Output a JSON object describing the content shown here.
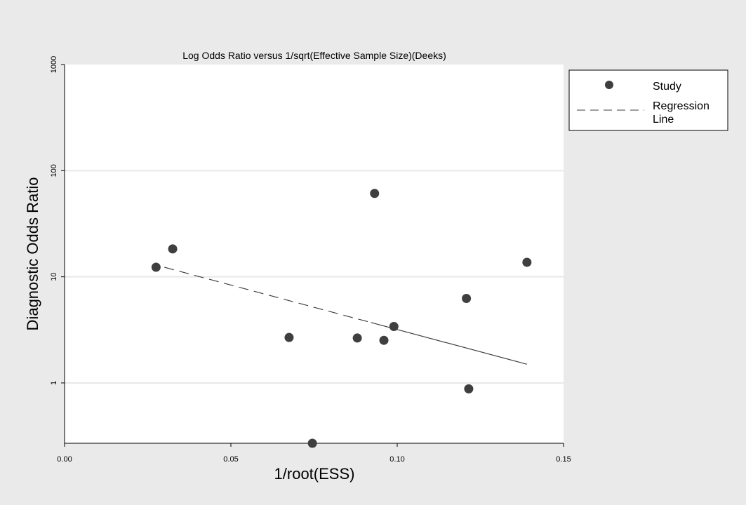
{
  "chart_data": {
    "type": "scatter",
    "title": "Log Odds Ratio versus 1/sqrt(Effective Sample Size)(Deeks)",
    "xlabel": "1/root(ESS)",
    "ylabel": "Diagnostic Odds Ratio",
    "y_scale": "log",
    "xlim": [
      0.0,
      0.15
    ],
    "ylim": [
      0.27,
      1000
    ],
    "x_ticks": [
      0.0,
      0.05,
      0.1,
      0.15
    ],
    "x_tick_labels": [
      "0.00",
      "0.05",
      "0.10",
      "0.15"
    ],
    "y_ticks": [
      1,
      10,
      100,
      1000
    ],
    "y_tick_labels": [
      "1",
      "10",
      "100",
      "1000"
    ],
    "grid": "horizontal",
    "legend_position": "right",
    "series": [
      {
        "name": "Study",
        "marker": "filled-circle",
        "color": "#3f3f3f",
        "points": [
          {
            "x": 0.0275,
            "y": 12.3
          },
          {
            "x": 0.0325,
            "y": 18.3
          },
          {
            "x": 0.0675,
            "y": 2.68
          },
          {
            "x": 0.0745,
            "y": 0.27
          },
          {
            "x": 0.088,
            "y": 2.65
          },
          {
            "x": 0.0932,
            "y": 61.0
          },
          {
            "x": 0.096,
            "y": 2.52
          },
          {
            "x": 0.099,
            "y": 3.4
          },
          {
            "x": 0.1208,
            "y": 6.25
          },
          {
            "x": 0.1215,
            "y": 0.88
          },
          {
            "x": 0.139,
            "y": 13.7
          }
        ]
      },
      {
        "name": "Regression Line",
        "line_style": "dashed-then-solid",
        "color": "#3f3f3f",
        "points": [
          {
            "x": 0.03,
            "y": 12.3
          },
          {
            "x": 0.139,
            "y": 1.5
          }
        ]
      }
    ],
    "legend": [
      {
        "label": "Study",
        "symbol": "filled-circle"
      },
      {
        "label": "Regression Line",
        "symbol": "dashed-line"
      }
    ]
  }
}
